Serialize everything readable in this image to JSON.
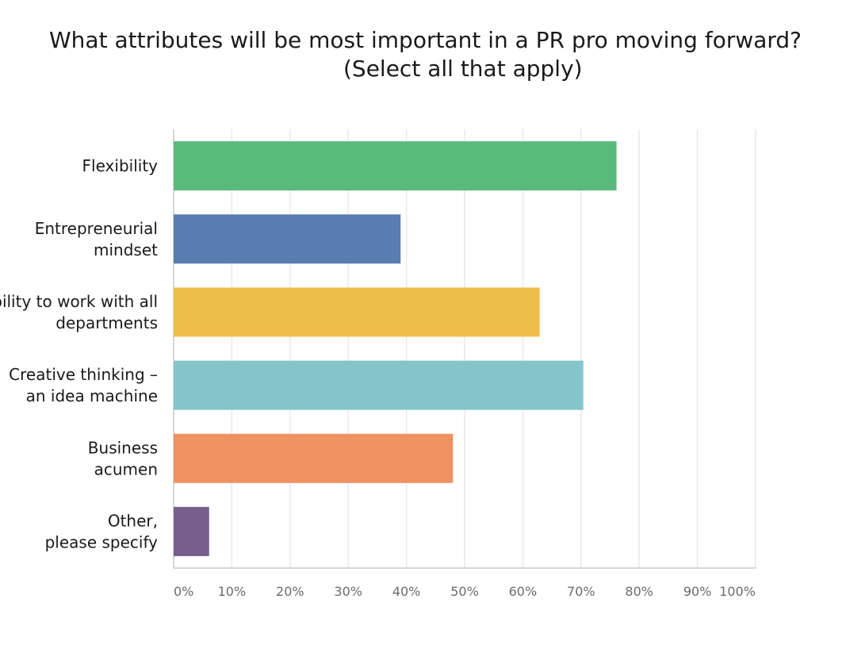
{
  "chart_data": {
    "type": "bar",
    "orientation": "horizontal",
    "title_lines": [
      "What attributes will be most important in a PR pro moving forward?",
      "(Select all that apply)"
    ],
    "categories": [
      [
        "Flexibility"
      ],
      [
        "Entrepreneurial",
        "mindset"
      ],
      [
        "Ability to work with all",
        "departments"
      ],
      [
        "Creative thinking –",
        "an idea machine"
      ],
      [
        "Business",
        "acumen"
      ],
      [
        "Other,",
        "please specify"
      ]
    ],
    "values": [
      76.1,
      39.0,
      62.9,
      70.4,
      48.0,
      6.1
    ],
    "colors": [
      "#59bb7b",
      "#5a7daf",
      "#f0be4b",
      "#83c5cb",
      "#ee9262",
      "#775e8c"
    ],
    "xlim": [
      0,
      100
    ],
    "x_ticks": [
      "0%",
      "10%",
      "20%",
      "30%",
      "40%",
      "50%",
      "60%",
      "70%",
      "80%",
      "90%",
      "100%"
    ],
    "grid": true,
    "xlabel": "",
    "ylabel": ""
  }
}
